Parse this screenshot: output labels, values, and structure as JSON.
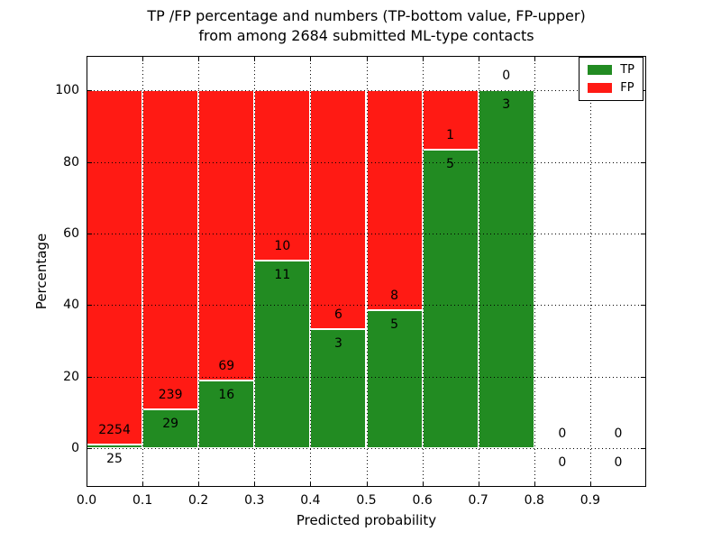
{
  "title": {
    "line1": "TP /FP percentage and numbers (TP-bottom value, FP-upper)",
    "line2": "from among 2684 submitted ML-type contacts"
  },
  "chart_data": {
    "type": "bar",
    "stacked": true,
    "normalized": "percent",
    "title": "TP /FP percentage and numbers (TP-bottom value, FP-upper) from among 2684 submitted ML-type contacts",
    "xlabel": "Predicted probability",
    "ylabel": "Percentage",
    "xlim": [
      0.0,
      1.0
    ],
    "ylim": [
      -10.8,
      109.6
    ],
    "x_ticks": [
      0.0,
      0.1,
      0.2,
      0.3,
      0.4,
      0.5,
      0.6,
      0.7,
      0.8,
      0.9
    ],
    "x_tick_labels": [
      "0.0",
      "0.1",
      "0.2",
      "0.3",
      "0.4",
      "0.5",
      "0.6",
      "0.7",
      "0.8",
      "0.9"
    ],
    "y_ticks": [
      0,
      20,
      40,
      60,
      80,
      100
    ],
    "y_tick_labels": [
      "0",
      "20",
      "40",
      "60",
      "80",
      "100"
    ],
    "grid": {
      "visible": true,
      "style": "dotted",
      "color": "#000000"
    },
    "total_contacts": 2684,
    "series_colors": {
      "tp": "#228b22",
      "fp": "#ff1a14"
    },
    "legend": {
      "position": "upper-right",
      "entries": [
        {
          "label": "TP",
          "color": "#228b22"
        },
        {
          "label": "FP",
          "color": "#ff1a14"
        }
      ]
    },
    "bins": [
      {
        "range": [
          0.0,
          0.1
        ],
        "tp": 25,
        "fp": 2254
      },
      {
        "range": [
          0.1,
          0.2
        ],
        "tp": 29,
        "fp": 239
      },
      {
        "range": [
          0.2,
          0.3
        ],
        "tp": 16,
        "fp": 69
      },
      {
        "range": [
          0.3,
          0.4
        ],
        "tp": 11,
        "fp": 10
      },
      {
        "range": [
          0.4,
          0.5
        ],
        "tp": 3,
        "fp": 6
      },
      {
        "range": [
          0.5,
          0.6
        ],
        "tp": 5,
        "fp": 8
      },
      {
        "range": [
          0.6,
          0.7
        ],
        "tp": 5,
        "fp": 1
      },
      {
        "range": [
          0.7,
          0.8
        ],
        "tp": 3,
        "fp": 0
      },
      {
        "range": [
          0.8,
          0.9
        ],
        "tp": 0,
        "fp": 0
      },
      {
        "range": [
          0.9,
          1.0
        ],
        "tp": 0,
        "fp": 0
      }
    ]
  }
}
